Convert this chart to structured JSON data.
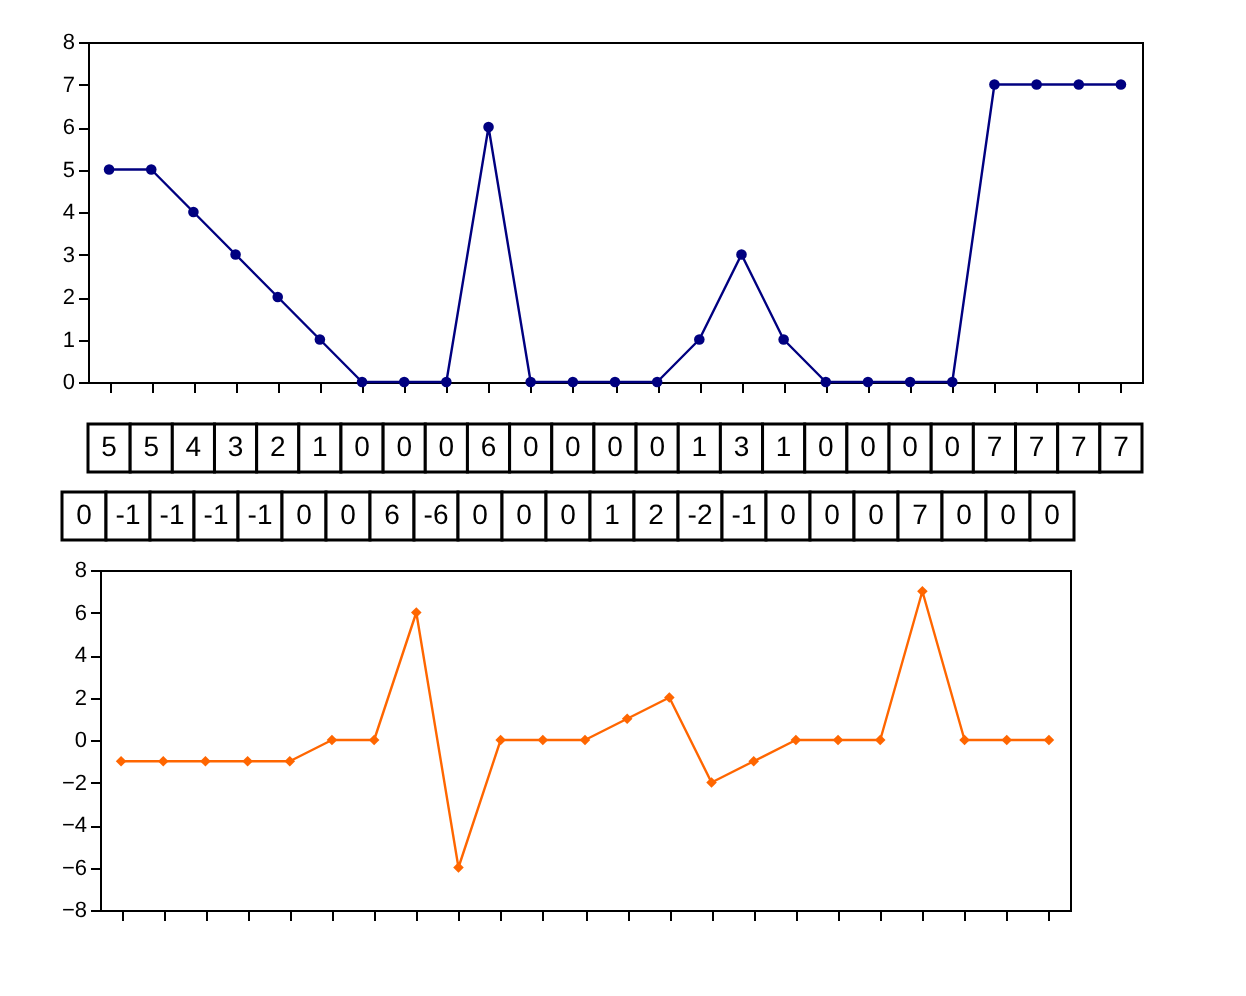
{
  "chart_data": [
    {
      "type": "line",
      "categories": [
        null,
        null,
        null,
        null,
        null,
        null,
        null,
        null,
        null,
        null,
        null,
        null,
        null,
        null,
        null,
        null,
        null,
        null,
        null,
        null,
        null,
        null,
        null,
        null,
        null
      ],
      "series": [
        {
          "color": "#000080",
          "values": [
            5,
            5,
            4,
            3,
            2,
            1,
            0,
            0,
            0,
            6,
            0,
            0,
            0,
            0,
            1,
            3,
            1,
            0,
            0,
            0,
            0,
            7,
            7,
            7,
            7
          ]
        }
      ],
      "ylim": [
        0,
        8
      ],
      "yticks": [
        0,
        1,
        2,
        3,
        4,
        5,
        6,
        7,
        8
      ],
      "marker": "circle",
      "tick_labels": "y",
      "data_labels": true
    },
    {
      "type": "other",
      "categories": [
        null,
        null,
        null,
        null,
        null,
        null,
        null,
        null,
        null,
        null,
        null,
        null,
        null,
        null,
        null,
        null,
        null,
        null,
        null,
        null,
        null,
        null,
        null
      ],
      "values": [
        0,
        -1,
        -1,
        -1,
        -1,
        0,
        0,
        6,
        -6,
        0,
        0,
        0,
        1,
        2,
        -2,
        -1,
        0,
        0,
        0,
        7,
        0,
        0,
        0
      ],
      "data_labels": true
    },
    {
      "type": "line",
      "categories": [
        null,
        null,
        null,
        null,
        null,
        null,
        null,
        null,
        null,
        null,
        null,
        null,
        null,
        null,
        null,
        null,
        null,
        null,
        null,
        null,
        null,
        null,
        null
      ],
      "series": [
        {
          "color": "#ff6600",
          "values": [
            -1,
            -1,
            -1,
            -1,
            -1,
            0,
            0,
            6,
            -6,
            0,
            0,
            0,
            1,
            2,
            -2,
            -1,
            0,
            0,
            0,
            7,
            0,
            0,
            0
          ]
        }
      ],
      "ylim": [
        -8,
        8
      ],
      "yticks": [
        -8,
        -6,
        -4,
        -2,
        0,
        2,
        4,
        6,
        8
      ],
      "marker": "diamond",
      "tick_labels": "y"
    }
  ]
}
